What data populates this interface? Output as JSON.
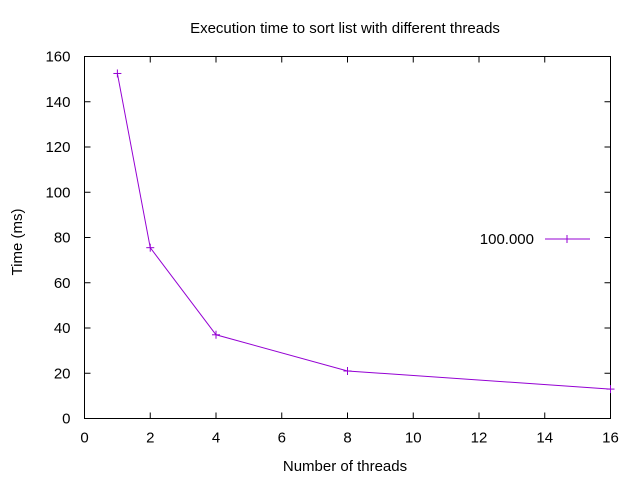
{
  "chart_data": {
    "type": "line",
    "title": "Execution time to sort list with different threads",
    "xlabel": "Number of threads",
    "ylabel": "Time (ms)",
    "xlim": [
      0,
      16
    ],
    "ylim": [
      0,
      160
    ],
    "x_ticks": [
      0,
      2,
      4,
      6,
      8,
      10,
      12,
      14,
      16
    ],
    "y_ticks": [
      0,
      20,
      40,
      60,
      80,
      100,
      120,
      140,
      160
    ],
    "grid": false,
    "legend_position": "right",
    "series": [
      {
        "name": "100.000",
        "color": "#9400d3",
        "marker": "plus",
        "x": [
          1,
          2,
          4,
          8,
          16
        ],
        "y": [
          152.5,
          75.5,
          37,
          21,
          13
        ]
      }
    ]
  }
}
